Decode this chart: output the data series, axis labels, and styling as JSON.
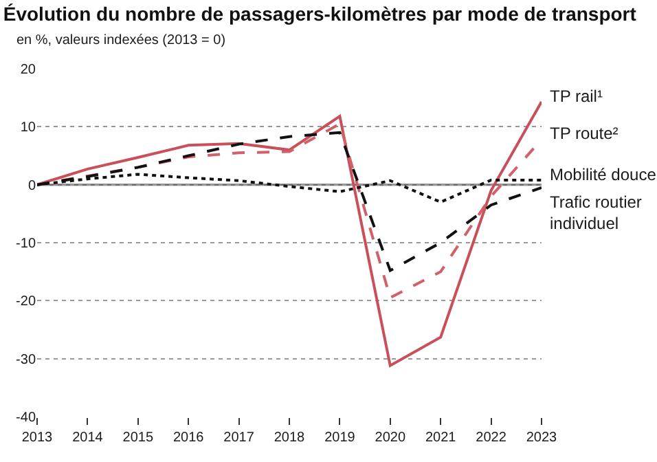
{
  "chart_data": {
    "type": "line",
    "title": "Évolution du nombre de passagers-kilomètres par mode de transport",
    "subtitle": "en %, valeurs indexées (2013 = 0)",
    "x": [
      2013,
      2014,
      2015,
      2016,
      2017,
      2018,
      2019,
      2020,
      2021,
      2022,
      2023
    ],
    "xlim": [
      2013,
      2023
    ],
    "xticks": [
      2013,
      2014,
      2015,
      2016,
      2017,
      2018,
      2019,
      2020,
      2021,
      2022,
      2023
    ],
    "ylim": [
      -40,
      20
    ],
    "yticks": [
      -40,
      -30,
      -20,
      -10,
      0,
      10,
      20
    ],
    "grid": "y",
    "legend": false,
    "marker": "none",
    "ref_lines": [
      {
        "axis": "y",
        "value": 0,
        "color": "#6e6e6e",
        "line_style": "solid"
      }
    ],
    "series": [
      {
        "name": "TP rail¹",
        "color": "#c9505a",
        "line_style": "solid",
        "values": [
          0,
          2.7,
          4.7,
          6.8,
          7.1,
          6.0,
          11.8,
          -31.2,
          -26.3,
          -1,
          14.3
        ]
      },
      {
        "name": "TP route²",
        "color": "#d0606a",
        "line_style": "dashed",
        "values": [
          0,
          1.5,
          3,
          4.8,
          5.5,
          5.7,
          10.5,
          -19.5,
          -15,
          -2,
          7.8
        ]
      },
      {
        "name": "Mobilité douce",
        "color": "#111111",
        "line_style": "dotted",
        "values": [
          0,
          1,
          1.8,
          1.2,
          0.7,
          -0.3,
          -1.2,
          0.7,
          -3,
          0.8,
          0.8
        ]
      },
      {
        "name": "Trafic routier individuel",
        "color": "#111111",
        "line_style": "dashed",
        "values": [
          0,
          1.4,
          3,
          5,
          7,
          8.3,
          9,
          -14.8,
          -10,
          -3.5,
          -0.5
        ]
      }
    ]
  }
}
